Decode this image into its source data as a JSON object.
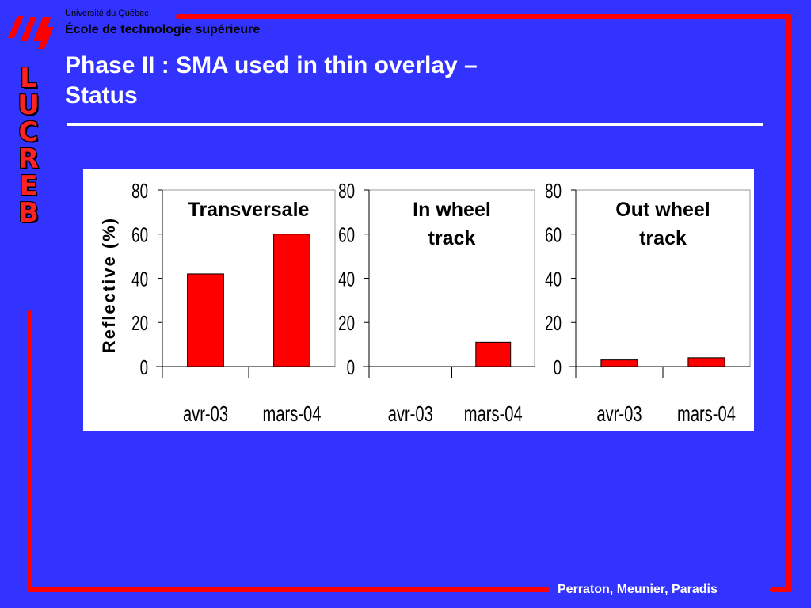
{
  "header": {
    "university": "Université du Québec",
    "school": "École de technologie supérieure"
  },
  "sidebar": {
    "letters": [
      "L",
      "U",
      "C",
      "R",
      "E",
      "B"
    ]
  },
  "slide": {
    "title_line1": "Phase II : SMA used in thin overlay –",
    "title_line2": "Status"
  },
  "footer": {
    "authors": "Perraton, Meunier, Paradis"
  },
  "colors": {
    "background": "#3333ff",
    "accent": "#ff0000",
    "bar": "#ff0000"
  },
  "chart_data": [
    {
      "type": "bar",
      "title": "Transversale",
      "ylabel": "Reflective (%)",
      "categories": [
        "avr-03",
        "mars-04"
      ],
      "values": [
        42,
        60
      ],
      "ylim": [
        0,
        80
      ],
      "yticks": [
        "0",
        "20",
        "40",
        "60",
        "80"
      ]
    },
    {
      "type": "bar",
      "title": "In wheel track",
      "title_lines": [
        "In wheel",
        "track"
      ],
      "categories": [
        "avr-03",
        "mars-04"
      ],
      "values": [
        0,
        11
      ],
      "ylim": [
        0,
        80
      ],
      "yticks": [
        "0",
        "20",
        "40",
        "60",
        "80"
      ]
    },
    {
      "type": "bar",
      "title": "Out wheel track",
      "title_lines": [
        "Out wheel",
        "track"
      ],
      "categories": [
        "avr-03",
        "mars-04"
      ],
      "values": [
        3,
        4
      ],
      "ylim": [
        0,
        80
      ],
      "yticks": [
        "0",
        "20",
        "40",
        "60",
        "80"
      ]
    }
  ]
}
